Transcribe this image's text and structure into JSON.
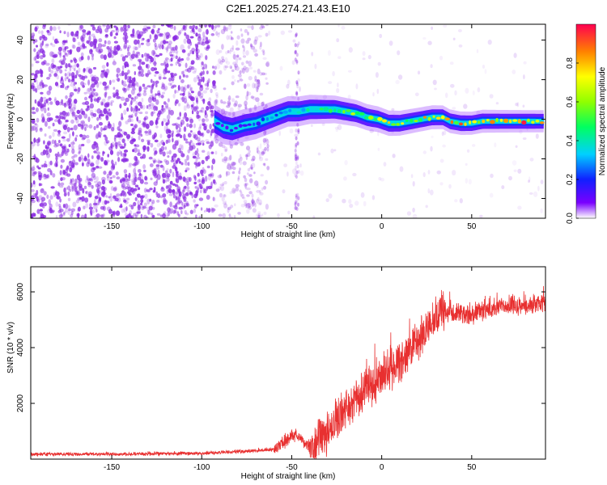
{
  "title": "C2E1.2025.274.21.43.E10",
  "colors": {
    "snr_line": "#e83030",
    "noise_point": "#8a2be2",
    "frame": "#000000"
  },
  "chart_data": [
    {
      "type": "heatmap",
      "title": "C2E1.2025.274.21.43.E10",
      "xlabel": "Height of straight line (km)",
      "ylabel": "Frequency (Hz)",
      "xlim": [
        -195,
        91
      ],
      "ylim": [
        -50,
        48
      ],
      "x_ticks": [
        -150,
        -100,
        -50,
        0,
        50
      ],
      "y_ticks": [
        40,
        20,
        0,
        -20,
        -40
      ],
      "colorbar": {
        "label": "Normalized spectral amplitude",
        "range": [
          0.0,
          1.0
        ],
        "ticks": [
          0.0,
          0.2,
          0.4,
          0.6,
          0.8
        ],
        "colormap": "rainbow"
      },
      "signal_track": [
        {
          "x": -93,
          "y": -1
        },
        {
          "x": -88,
          "y": -4
        },
        {
          "x": -83,
          "y": -5
        },
        {
          "x": -76,
          "y": -3
        },
        {
          "x": -70,
          "y": -2
        },
        {
          "x": -64,
          "y": 0
        },
        {
          "x": -58,
          "y": 2
        },
        {
          "x": -52,
          "y": 4
        },
        {
          "x": -46,
          "y": 4
        },
        {
          "x": -40,
          "y": 5
        },
        {
          "x": -33,
          "y": 5
        },
        {
          "x": -26,
          "y": 5
        },
        {
          "x": -20,
          "y": 4
        },
        {
          "x": -14,
          "y": 3
        },
        {
          "x": -8,
          "y": 1
        },
        {
          "x": -2,
          "y": 0
        },
        {
          "x": 4,
          "y": -2
        },
        {
          "x": 10,
          "y": -2
        },
        {
          "x": 16,
          "y": -1
        },
        {
          "x": 22,
          "y": 0
        },
        {
          "x": 28,
          "y": 1
        },
        {
          "x": 34,
          "y": 1
        },
        {
          "x": 38,
          "y": -1
        },
        {
          "x": 44,
          "y": -2
        },
        {
          "x": 50,
          "y": -2
        },
        {
          "x": 56,
          "y": -1
        },
        {
          "x": 62,
          "y": -1
        },
        {
          "x": 70,
          "y": -1
        },
        {
          "x": 80,
          "y": -1
        },
        {
          "x": 90,
          "y": -1
        }
      ],
      "signal_amplitude": [
        {
          "x": -93,
          "a": 0.1
        },
        {
          "x": -60,
          "a": 0.3
        },
        {
          "x": -40,
          "a": 0.45
        },
        {
          "x": -20,
          "a": 0.6
        },
        {
          "x": 0,
          "a": 0.7
        },
        {
          "x": 20,
          "a": 0.8
        },
        {
          "x": 40,
          "a": 0.85
        },
        {
          "x": 60,
          "a": 0.9
        },
        {
          "x": 90,
          "a": 0.95
        }
      ]
    },
    {
      "type": "line",
      "xlabel": "Height of straight line (km)",
      "ylabel": "SNR (10 * v/v)",
      "xlim": [
        -195,
        91
      ],
      "ylim": [
        0,
        6900
      ],
      "x_ticks": [
        -150,
        -100,
        -50,
        0,
        50
      ],
      "y_ticks": [
        2000,
        4000,
        6000
      ],
      "series": [
        {
          "x": [
            -195,
            -150,
            -100,
            -75,
            -60,
            -52,
            -47,
            -42,
            -38,
            -30,
            -20,
            -10,
            0,
            10,
            20,
            30,
            35,
            40,
            50,
            60,
            70,
            80,
            91
          ],
          "y": [
            180,
            180,
            210,
            280,
            350,
            700,
            900,
            500,
            400,
            1000,
            1800,
            2400,
            3000,
            3500,
            4200,
            5000,
            5400,
            5200,
            5200,
            5400,
            5500,
            5500,
            5600
          ]
        }
      ]
    }
  ]
}
